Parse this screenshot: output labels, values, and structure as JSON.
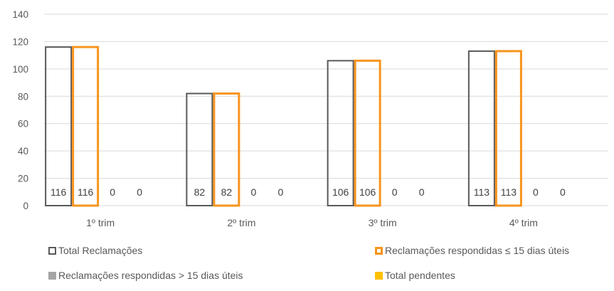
{
  "chart_data": {
    "type": "bar",
    "categories": [
      "1º trim",
      "2º trim",
      "3º trim",
      "4º trim"
    ],
    "series": [
      {
        "name": "Total Reclamações",
        "values": [
          116,
          82,
          106,
          113
        ],
        "color": "#595959",
        "fill": "none"
      },
      {
        "name": "Reclamações respondidas ≤ 15 dias úteis",
        "values": [
          116,
          82,
          106,
          113
        ],
        "color": "#F7941D",
        "fill": "none"
      },
      {
        "name": "Reclamações respondidas > 15 dias úteis",
        "values": [
          0,
          0,
          0,
          0
        ],
        "color": "#A5A5A5",
        "fill": "#A5A5A5"
      },
      {
        "name": "Total pendentes",
        "values": [
          0,
          0,
          0,
          0
        ],
        "color": "#FFC000",
        "fill": "#FFC000"
      }
    ],
    "data_labels": [
      [
        "116",
        "116",
        "0",
        "0"
      ],
      [
        "82",
        "82",
        "0",
        "0"
      ],
      [
        "106",
        "106",
        "0",
        "0"
      ],
      [
        "113",
        "113",
        "0",
        "0"
      ]
    ],
    "yticks": [
      "0",
      "20",
      "40",
      "60",
      "80",
      "100",
      "120",
      "140"
    ],
    "ylim": [
      0,
      140
    ],
    "grid": true,
    "legend_position": "bottom"
  }
}
